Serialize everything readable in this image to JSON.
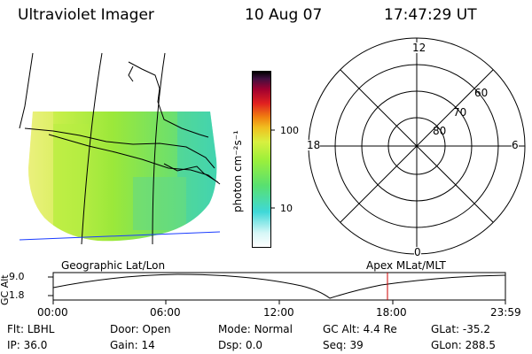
{
  "header": {
    "instrument": "Ultraviolet Imager",
    "date": "10 Aug 07",
    "time": "17:47:29 UT"
  },
  "colorbar": {
    "unit_label": "photon cm⁻²s⁻¹",
    "ticks": [
      "100",
      "10"
    ]
  },
  "map": {
    "label": "Geographic Lat/Lon"
  },
  "polar": {
    "label": "Apex MLat/MLT",
    "mlt_labels": [
      "12",
      "18",
      "6",
      "0"
    ],
    "lat_labels": [
      "60",
      "70",
      "80"
    ]
  },
  "alt_plot": {
    "ylabel": "GC Alt",
    "yticks": [
      "9.0",
      "1.8"
    ],
    "xticks": [
      "00:00",
      "06:00",
      "12:00",
      "18:00",
      "23:59"
    ],
    "marker_color": "#cc0000"
  },
  "info": {
    "row1": [
      {
        "label": "Flt:",
        "value": "LBHL"
      },
      {
        "label": "Door:",
        "value": "Open"
      },
      {
        "label": "Mode:",
        "value": "Normal"
      },
      {
        "label": "GC Alt:",
        "value": "4.4 Re"
      },
      {
        "label": "GLat:",
        "value": "-35.2"
      }
    ],
    "row2": [
      {
        "label": "IP:",
        "value": "36.0"
      },
      {
        "label": "Gain:",
        "value": "14"
      },
      {
        "label": "Dsp:",
        "value": "0.0"
      },
      {
        "label": "Seq:",
        "value": "39"
      },
      {
        "label": "GLon:",
        "value": "288.5"
      }
    ]
  }
}
